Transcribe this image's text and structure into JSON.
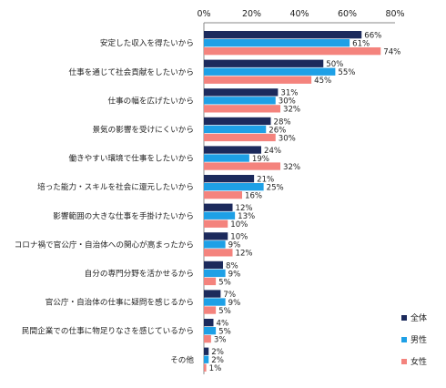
{
  "chart_data": {
    "type": "bar",
    "orientation": "horizontal",
    "title": "",
    "xlabel": "",
    "ylabel": "",
    "xlim": [
      0,
      80
    ],
    "ticks": [
      0,
      20,
      40,
      60,
      80
    ],
    "tick_labels": [
      "0%",
      "20%",
      "40%",
      "60%",
      "80%"
    ],
    "grid": false,
    "legend_position": "right",
    "value_suffix": "%",
    "categories": [
      "安定した収入を得たいから",
      "仕事を通じて社会貢献をしたいから",
      "仕事の幅を広げたいから",
      "景気の影響を受けにくいから",
      "働きやすい環境で仕事をしたいから",
      "培った能力・スキルを社会に還元したいから",
      "影響範囲の大きな仕事を手掛けたいから",
      "コロナ禍で官公庁・自治体への関心が高まったから",
      "自分の専門分野を活かせるから",
      "官公庁・自治体の仕事に疑問を感じるから",
      "民間企業での仕事に物足りなさを感じているから",
      "その他"
    ],
    "series": [
      {
        "name": "全体",
        "color": "#1c2a5c",
        "values": [
          66,
          50,
          31,
          28,
          24,
          21,
          12,
          10,
          8,
          7,
          4,
          2
        ]
      },
      {
        "name": "男性",
        "color": "#1ea0e6",
        "values": [
          61,
          55,
          30,
          26,
          19,
          25,
          13,
          9,
          9,
          9,
          5,
          2
        ]
      },
      {
        "name": "女性",
        "color": "#f4837d",
        "values": [
          74,
          45,
          32,
          30,
          32,
          16,
          10,
          12,
          5,
          5,
          3,
          1
        ]
      }
    ]
  }
}
